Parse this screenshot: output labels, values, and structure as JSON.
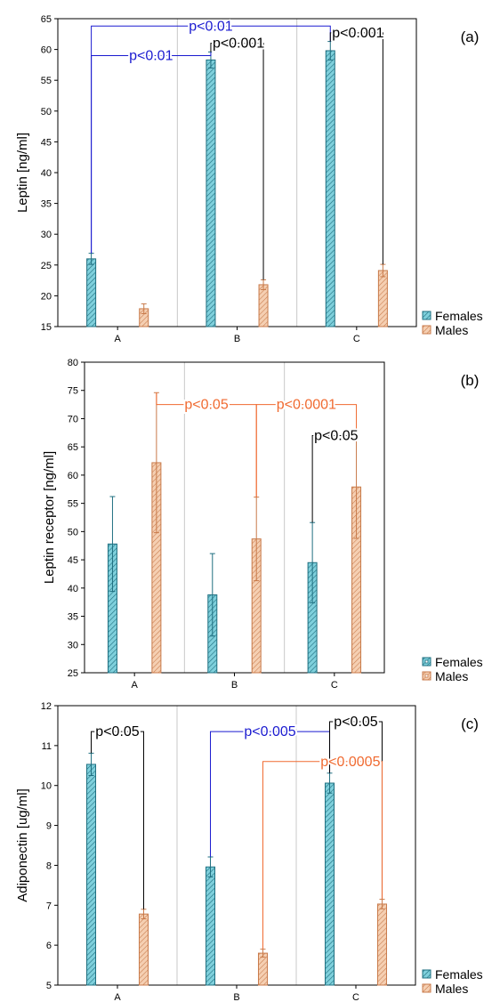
{
  "colors": {
    "females_fill": "#7fd0dc",
    "females_stroke": "#1f6f80",
    "males_fill": "#f5cfb2",
    "males_stroke": "#c87a4a",
    "bracket_black": "#000000",
    "bracket_blue": "#1a1ad0",
    "bracket_orange": "#f06a30",
    "separator": "#c8c8c8"
  },
  "chart_data": [
    {
      "type": "bar",
      "panel_label": "(a)",
      "ylabel": "Leptin [ng/ml]",
      "ylim": [
        15,
        65
      ],
      "yticks": [
        15,
        20,
        25,
        30,
        35,
        40,
        45,
        50,
        55,
        60,
        65
      ],
      "categories": [
        "A",
        "B",
        "C"
      ],
      "series": [
        {
          "name": "Females",
          "values": [
            26,
            58.3,
            59.8
          ],
          "err": [
            0.9,
            1.3,
            1.5
          ]
        },
        {
          "name": "Males",
          "values": [
            17.9,
            21.8,
            24.1
          ],
          "err": [
            0.8,
            0.8,
            1.0
          ]
        }
      ],
      "legend_icon": "patch",
      "separators": [
        "A|B",
        "B|C"
      ],
      "annotations": [
        {
          "text": "p<0.01",
          "color": "blue",
          "from": [
            0,
            0
          ],
          "to": [
            2,
            0
          ],
          "y": 63.8,
          "label_pos": "mid"
        },
        {
          "text": "p<0.01",
          "color": "blue",
          "from": [
            0,
            0
          ],
          "to": [
            1,
            0
          ],
          "y": 59,
          "label_pos": "mid"
        },
        {
          "text": "p<0.001",
          "color": "black",
          "from": [
            1,
            0
          ],
          "to": [
            1,
            1
          ],
          "y": 61,
          "label_pos": "start"
        },
        {
          "text": "p<0.001",
          "color": "black",
          "from": [
            2,
            0
          ],
          "to": [
            2,
            1
          ],
          "y": 62.7,
          "label_pos": "start"
        }
      ]
    },
    {
      "type": "bar",
      "panel_label": "(b)",
      "ylabel": "Leptin receptor [ng/ml]",
      "ylim": [
        25,
        80
      ],
      "yticks": [
        25,
        30,
        35,
        40,
        45,
        50,
        55,
        60,
        65,
        70,
        75,
        80
      ],
      "categories": [
        "A",
        "B",
        "C"
      ],
      "series": [
        {
          "name": "Females",
          "values": [
            47.8,
            38.8,
            44.5
          ],
          "err": [
            8.4,
            7.3,
            7.1
          ]
        },
        {
          "name": "Males",
          "values": [
            62.2,
            48.7,
            57.9
          ],
          "err": [
            12.4,
            7.4,
            9.1
          ]
        }
      ],
      "legend_icon": "errorbox",
      "separators": [
        "A|B",
        "B|C"
      ],
      "annotations": [
        {
          "text": "p<0.05",
          "color": "orange",
          "from": [
            1,
            1
          ],
          "to": [
            0,
            1
          ],
          "y": 72.5,
          "label_pos": "mid"
        },
        {
          "text": "p<0.0001",
          "color": "orange",
          "from": [
            1,
            1
          ],
          "to": [
            2,
            1
          ],
          "y": 72.5,
          "label_pos": "mid"
        },
        {
          "text": "p<0.05",
          "color": "black",
          "from": [
            2,
            0
          ],
          "to": [
            2,
            1
          ],
          "y": 67,
          "label_pos": "start"
        }
      ]
    },
    {
      "type": "bar",
      "panel_label": "(c)",
      "ylabel": "Adiponectin [ug/ml]",
      "ylim": [
        5,
        12
      ],
      "yticks": [
        5,
        6,
        7,
        8,
        9,
        10,
        11,
        12
      ],
      "categories": [
        "A",
        "B",
        "C"
      ],
      "series": [
        {
          "name": "Females",
          "values": [
            10.53,
            7.96,
            10.06
          ],
          "err": [
            0.28,
            0.25,
            0.25
          ]
        },
        {
          "name": "Males",
          "values": [
            6.78,
            5.8,
            7.03
          ],
          "err": [
            0.12,
            0.1,
            0.12
          ]
        }
      ],
      "legend_icon": "patch",
      "separators": [
        "A|B",
        "B|C"
      ],
      "annotations": [
        {
          "text": "p<0.05",
          "color": "black",
          "from": [
            0,
            0
          ],
          "to": [
            0,
            1
          ],
          "y": 11.35,
          "label_pos": "mid"
        },
        {
          "text": "p<0.005",
          "color": "blue",
          "from": [
            1,
            0
          ],
          "to": [
            2,
            0
          ],
          "y": 11.35,
          "label_pos": "mid"
        },
        {
          "text": "p<0.05",
          "color": "black",
          "from": [
            2,
            0
          ],
          "to": [
            2,
            1
          ],
          "y": 11.6,
          "label_pos": "mid"
        },
        {
          "text": "p<0.0005",
          "color": "orange",
          "from": [
            1,
            1
          ],
          "to": [
            2,
            1
          ],
          "y": 10.6,
          "label_pos": "end"
        }
      ]
    }
  ]
}
